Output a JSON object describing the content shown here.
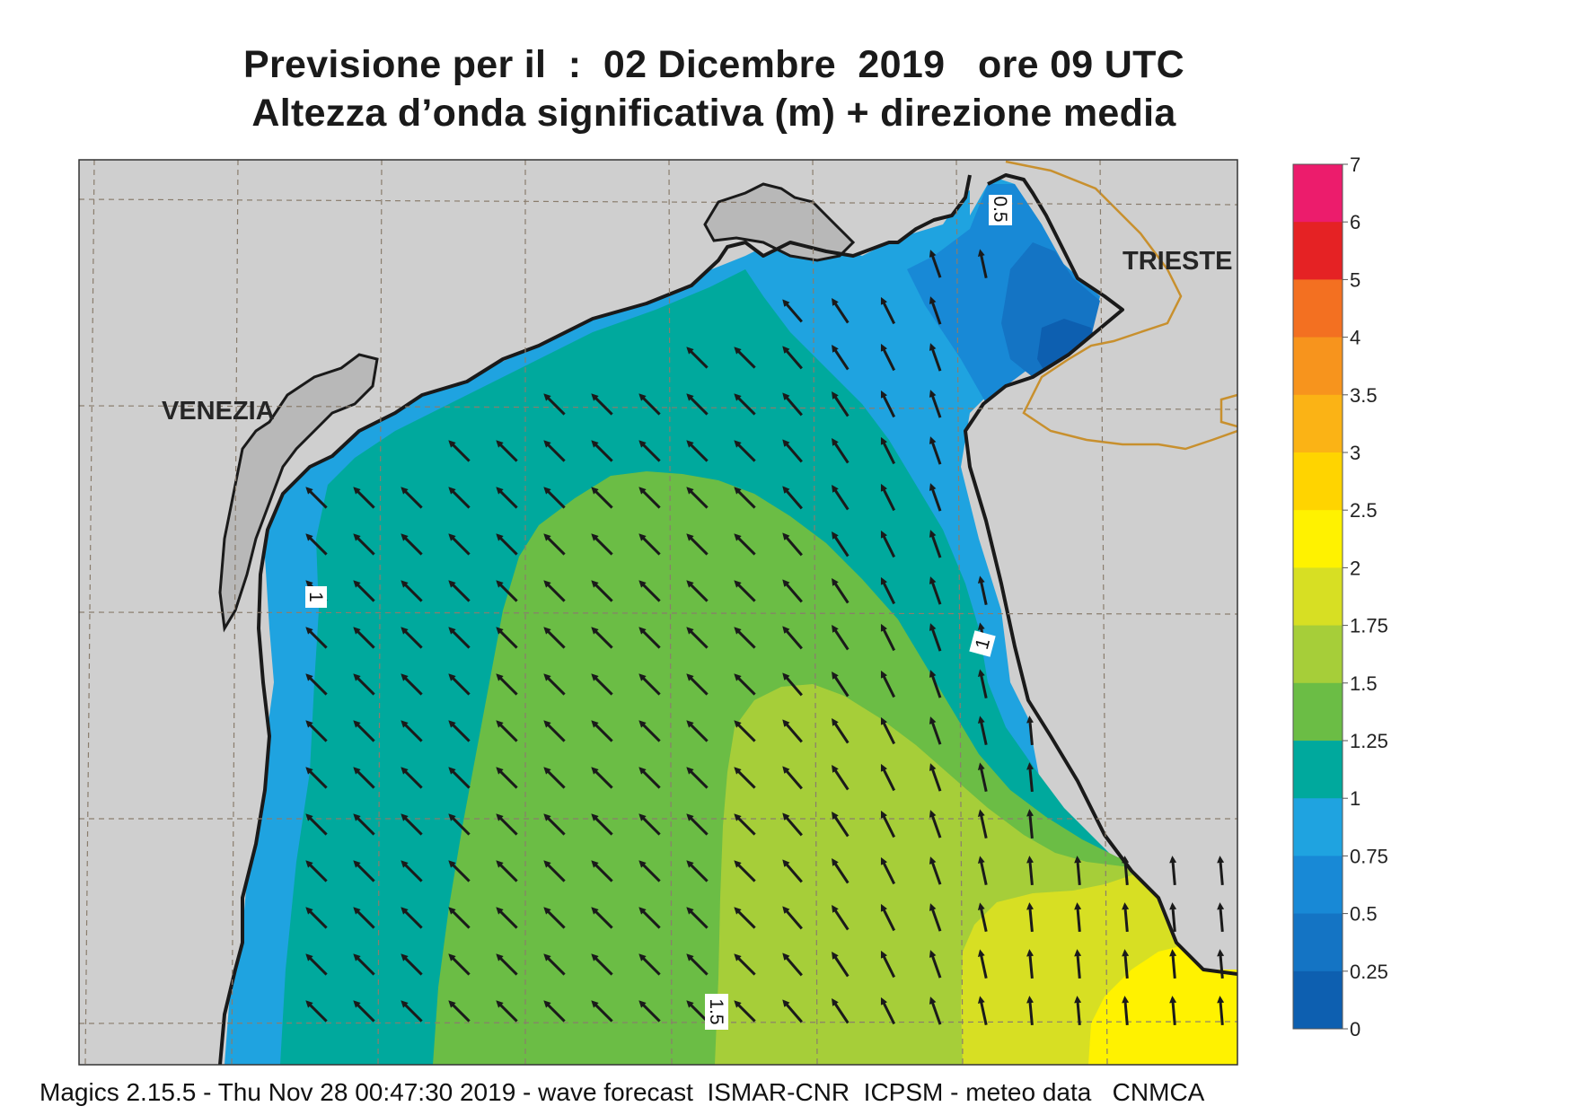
{
  "title": {
    "line1": "Previsione per il  :  02 Dicembre  2019   ore 09 UTC",
    "line2": "Altezza d’onda significativa (m) + direzione media"
  },
  "map": {
    "city_labels": [
      "VENEZIA",
      "TRIESTE"
    ],
    "contour_labels": [
      "0.5",
      "1",
      "1",
      "1.5"
    ],
    "wave_direction": "north-west",
    "colors": {
      "land": "#cfcfcf",
      "coastline": "#1a1a1a",
      "border": "#c8902e",
      "arrow": "#1a1a1a"
    }
  },
  "legend": {
    "ticks": [
      "7",
      "6",
      "5",
      "4",
      "3.5",
      "3",
      "2.5",
      "2",
      "1.75",
      "1.5",
      "1.25",
      "1",
      "0.75",
      "0.5",
      "0.25",
      "0"
    ],
    "colors": [
      "#ec1c6c",
      "#e52224",
      "#f37021",
      "#f7941d",
      "#fbb315",
      "#ffd400",
      "#fff200",
      "#d7df23",
      "#a6ce39",
      "#6bbd45",
      "#00a99d",
      "#1fa3e0",
      "#1889d6",
      "#1474c4",
      "#0d5fb0"
    ]
  },
  "footer": "Magics 2.15.5 - Thu Nov 28 00:47:30 2019 - wave forecast  ISMAR-CNR  ICPSM - meteo data   CNMCA"
}
